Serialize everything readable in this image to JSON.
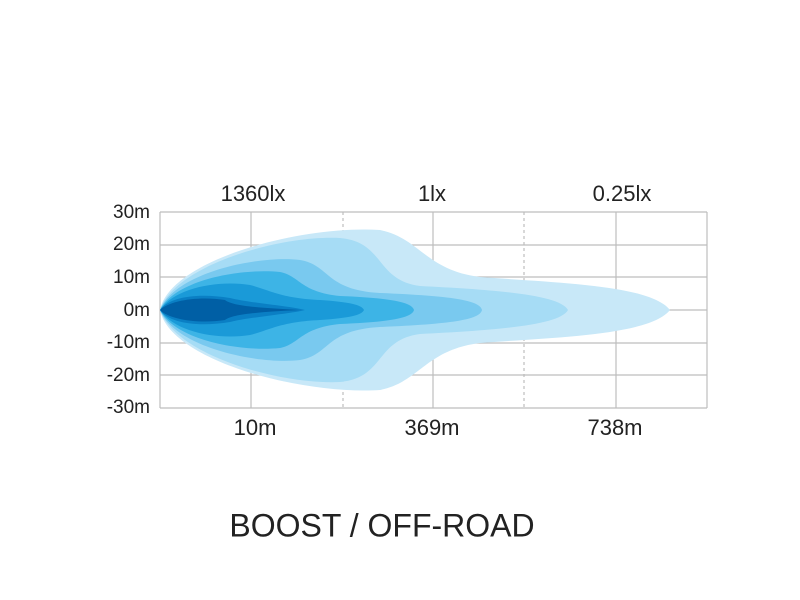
{
  "top_labels": [
    "1360lx",
    "1lx",
    "0.25lx"
  ],
  "y_labels": [
    "30m",
    "20m",
    "10m",
    "0m",
    "-10m",
    "-20m",
    "-30m"
  ],
  "bottom_labels": [
    "10m",
    "369m",
    "738m"
  ],
  "caption": "BOOST / OFF-ROAD"
}
